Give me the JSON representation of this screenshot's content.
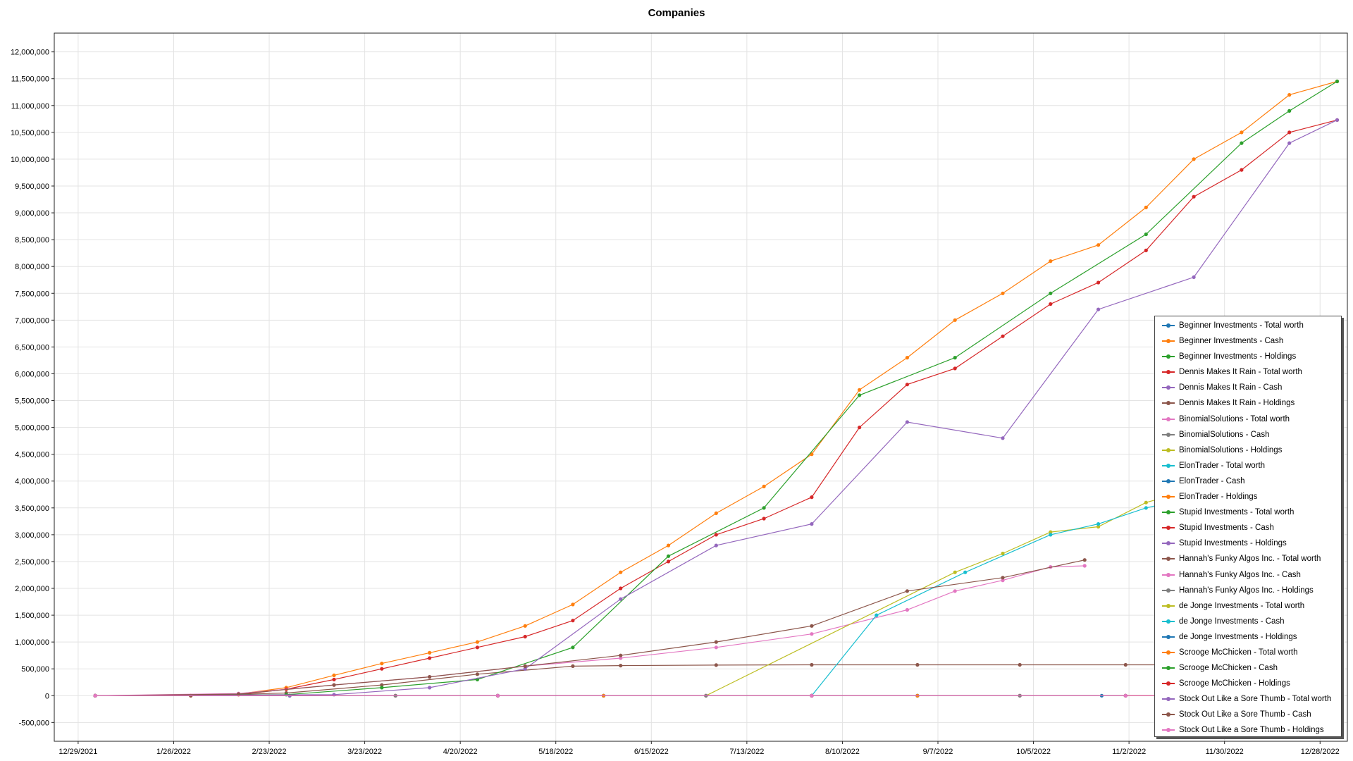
{
  "chart_data": {
    "type": "line",
    "title": "Companies",
    "xlabel": "",
    "ylabel": "",
    "x_ticks": [
      "12/29/2021",
      "1/26/2022",
      "2/23/2022",
      "3/23/2022",
      "4/20/2022",
      "5/18/2022",
      "6/15/2022",
      "7/13/2022",
      "8/10/2022",
      "9/7/2022",
      "10/5/2022",
      "11/2/2022",
      "11/30/2022",
      "12/28/2022"
    ],
    "x_range": [
      "12/22/2021",
      "1/5/2023"
    ],
    "y_ticks": [
      "-500,000",
      "0",
      "500,000",
      "1,000,000",
      "1,500,000",
      "2,000,000",
      "2,500,000",
      "3,000,000",
      "3,500,000",
      "4,000,000",
      "4,500,000",
      "5,000,000",
      "5,500,000",
      "6,000,000",
      "6,500,000",
      "7,000,000",
      "7,500,000",
      "8,000,000",
      "8,500,000",
      "9,000,000",
      "9,500,000",
      "10,000,000",
      "10,500,000",
      "11,000,000",
      "11,500,000",
      "12,000,000"
    ],
    "ylim": [
      -850000,
      12350000
    ],
    "grid": true,
    "legend_position": "bottom-right",
    "series": [
      {
        "name": "Beginner Investments - Total worth",
        "color": "#1f77b4",
        "points": [
          [
            "1/3/2022",
            0
          ],
          [
            "3/1/2022",
            0
          ],
          [
            "5/1/2022",
            0
          ],
          [
            "7/1/2022",
            0
          ],
          [
            "9/1/2022",
            0
          ],
          [
            "10/25/2022",
            0
          ]
        ]
      },
      {
        "name": "Beginner Investments - Cash",
        "color": "#ff7f0e",
        "points": [
          [
            "1/3/2022",
            0
          ],
          [
            "1/31/2022",
            0
          ],
          [
            "2/14/2022",
            30000
          ],
          [
            "2/28/2022",
            150000
          ],
          [
            "3/14/2022",
            380000
          ],
          [
            "3/28/2022",
            600000
          ],
          [
            "4/11/2022",
            800000
          ],
          [
            "4/25/2022",
            1000000
          ],
          [
            "5/9/2022",
            1300000
          ],
          [
            "5/23/2022",
            1700000
          ],
          [
            "6/6/2022",
            2300000
          ],
          [
            "6/20/2022",
            2800000
          ],
          [
            "7/4/2022",
            3400000
          ],
          [
            "7/18/2022",
            3900000
          ],
          [
            "8/1/2022",
            4500000
          ],
          [
            "8/15/2022",
            5700000
          ],
          [
            "8/29/2022",
            6300000
          ],
          [
            "9/12/2022",
            7000000
          ],
          [
            "9/26/2022",
            7500000
          ],
          [
            "10/10/2022",
            8100000
          ],
          [
            "10/24/2022",
            8400000
          ],
          [
            "11/7/2022",
            9100000
          ],
          [
            "11/21/2022",
            10000000
          ],
          [
            "12/5/2022",
            10500000
          ],
          [
            "12/19/2022",
            11200000
          ],
          [
            "1/2/2023",
            11450000
          ]
        ]
      },
      {
        "name": "Beginner Investments - Holdings",
        "color": "#2ca02c",
        "points": [
          [
            "1/3/2022",
            0
          ],
          [
            "3/1/2022",
            0
          ],
          [
            "6/1/2022",
            0
          ],
          [
            "9/1/2022",
            0
          ],
          [
            "12/1/2022",
            0
          ]
        ]
      },
      {
        "name": "Dennis Makes It Rain - Total worth",
        "color": "#d62728",
        "points": [
          [
            "1/3/2022",
            0
          ],
          [
            "1/31/2022",
            0
          ],
          [
            "2/14/2022",
            20000
          ],
          [
            "2/28/2022",
            120000
          ],
          [
            "3/14/2022",
            300000
          ],
          [
            "3/28/2022",
            500000
          ],
          [
            "4/11/2022",
            700000
          ],
          [
            "4/25/2022",
            900000
          ],
          [
            "5/9/2022",
            1100000
          ],
          [
            "5/23/2022",
            1400000
          ],
          [
            "6/6/2022",
            2000000
          ],
          [
            "6/20/2022",
            2500000
          ],
          [
            "7/4/2022",
            3000000
          ],
          [
            "7/18/2022",
            3300000
          ],
          [
            "8/1/2022",
            3700000
          ],
          [
            "8/15/2022",
            5000000
          ],
          [
            "8/29/2022",
            5800000
          ],
          [
            "9/12/2022",
            6100000
          ],
          [
            "9/26/2022",
            6700000
          ],
          [
            "10/10/2022",
            7300000
          ],
          [
            "10/24/2022",
            7700000
          ],
          [
            "11/7/2022",
            8300000
          ],
          [
            "11/21/2022",
            9300000
          ],
          [
            "12/5/2022",
            9800000
          ],
          [
            "12/19/2022",
            10500000
          ],
          [
            "1/2/2023",
            10730000
          ]
        ]
      },
      {
        "name": "Dennis Makes It Rain - Cash",
        "color": "#9467bd",
        "points": [
          [
            "1/3/2022",
            0
          ],
          [
            "3/1/2022",
            0
          ],
          [
            "6/1/2022",
            0
          ],
          [
            "9/1/2022",
            0
          ],
          [
            "12/1/2022",
            0
          ]
        ]
      },
      {
        "name": "Dennis Makes It Rain - Holdings",
        "color": "#8c564b",
        "points": [
          [
            "1/3/2022",
            0
          ],
          [
            "1/31/2022",
            0
          ],
          [
            "2/28/2022",
            50000
          ],
          [
            "3/28/2022",
            200000
          ],
          [
            "4/25/2022",
            400000
          ],
          [
            "5/23/2022",
            550000
          ],
          [
            "6/6/2022",
            560000
          ],
          [
            "7/4/2022",
            570000
          ],
          [
            "8/1/2022",
            575000
          ],
          [
            "9/1/2022",
            575000
          ],
          [
            "10/1/2022",
            575000
          ],
          [
            "11/1/2022",
            575000
          ],
          [
            "12/1/2022",
            575000
          ]
        ]
      },
      {
        "name": "BinomialSolutions - Total worth",
        "color": "#e377c2",
        "points": [
          [
            "1/3/2022",
            0
          ],
          [
            "2/14/2022",
            40000
          ],
          [
            "3/14/2022",
            200000
          ],
          [
            "4/11/2022",
            350000
          ],
          [
            "5/9/2022",
            550000
          ],
          [
            "6/6/2022",
            700000
          ],
          [
            "7/4/2022",
            900000
          ],
          [
            "8/1/2022",
            1150000
          ],
          [
            "8/29/2022",
            1600000
          ],
          [
            "9/12/2022",
            1950000
          ],
          [
            "9/26/2022",
            2150000
          ],
          [
            "10/10/2022",
            2400000
          ],
          [
            "10/20/2022",
            2420000
          ]
        ]
      },
      {
        "name": "BinomialSolutions - Cash",
        "color": "#7f7f7f",
        "points": [
          [
            "1/3/2022",
            0
          ],
          [
            "4/1/2022",
            0
          ],
          [
            "7/1/2022",
            0
          ],
          [
            "10/1/2022",
            0
          ]
        ]
      },
      {
        "name": "BinomialSolutions - Holdings",
        "color": "#bcbd22",
        "points": [
          [
            "1/3/2022",
            0
          ],
          [
            "4/1/2022",
            0
          ],
          [
            "7/1/2022",
            0
          ],
          [
            "9/12/2022",
            2300000
          ],
          [
            "9/26/2022",
            2650000
          ],
          [
            "10/10/2022",
            3050000
          ],
          [
            "10/24/2022",
            3150000
          ],
          [
            "11/7/2022",
            3600000
          ],
          [
            "11/21/2022",
            3850000
          ],
          [
            "11/28/2022",
            4300000
          ],
          [
            "12/1/2022",
            4400000
          ]
        ]
      },
      {
        "name": "ElonTrader - Total worth",
        "color": "#17becf",
        "points": [
          [
            "1/3/2022",
            0
          ],
          [
            "5/1/2022",
            0
          ],
          [
            "8/1/2022",
            0
          ],
          [
            "8/20/2022",
            1500000
          ],
          [
            "9/15/2022",
            2300000
          ],
          [
            "10/10/2022",
            3000000
          ],
          [
            "10/24/2022",
            3200000
          ],
          [
            "11/7/2022",
            3500000
          ],
          [
            "11/21/2022",
            3700000
          ],
          [
            "12/1/2022",
            4400000
          ]
        ]
      },
      {
        "name": "ElonTrader - Cash",
        "color": "#1f77b4",
        "points": [
          [
            "1/3/2022",
            0
          ],
          [
            "6/1/2022",
            0
          ],
          [
            "9/1/2022",
            0
          ],
          [
            "12/1/2022",
            0
          ]
        ]
      },
      {
        "name": "ElonTrader - Holdings",
        "color": "#ff7f0e",
        "points": [
          [
            "1/3/2022",
            0
          ],
          [
            "6/1/2022",
            0
          ],
          [
            "9/1/2022",
            0
          ],
          [
            "12/1/2022",
            0
          ]
        ]
      },
      {
        "name": "Stupid Investments - Total worth",
        "color": "#2ca02c",
        "points": [
          [
            "1/3/2022",
            0
          ],
          [
            "2/28/2022",
            20000
          ],
          [
            "3/28/2022",
            150000
          ],
          [
            "4/25/2022",
            300000
          ],
          [
            "5/23/2022",
            900000
          ],
          [
            "6/20/2022",
            2600000
          ],
          [
            "7/18/2022",
            3500000
          ],
          [
            "8/15/2022",
            5600000
          ],
          [
            "9/12/2022",
            6300000
          ],
          [
            "10/10/2022",
            7500000
          ],
          [
            "11/7/2022",
            8600000
          ],
          [
            "12/5/2022",
            10300000
          ],
          [
            "12/19/2022",
            10900000
          ],
          [
            "1/2/2023",
            11450000
          ]
        ]
      },
      {
        "name": "Stupid Investments - Cash",
        "color": "#d62728",
        "points": [
          [
            "1/3/2022",
            0
          ],
          [
            "4/1/2022",
            0
          ],
          [
            "7/1/2022",
            0
          ],
          [
            "10/1/2022",
            0
          ],
          [
            "1/2/2023",
            0
          ]
        ]
      },
      {
        "name": "Stupid Investments - Holdings",
        "color": "#9467bd",
        "points": [
          [
            "1/3/2022",
            0
          ],
          [
            "3/14/2022",
            20000
          ],
          [
            "4/11/2022",
            150000
          ],
          [
            "5/9/2022",
            500000
          ],
          [
            "6/6/2022",
            1800000
          ],
          [
            "7/4/2022",
            2800000
          ],
          [
            "8/1/2022",
            3200000
          ],
          [
            "8/29/2022",
            5100000
          ],
          [
            "9/26/2022",
            4800000
          ],
          [
            "10/24/2022",
            7200000
          ],
          [
            "11/21/2022",
            7800000
          ],
          [
            "12/19/2022",
            10300000
          ],
          [
            "1/2/2023",
            10730000
          ]
        ]
      },
      {
        "name": "Hannah's Funky Algos Inc. - Total worth",
        "color": "#8c564b",
        "points": [
          [
            "1/3/2022",
            0
          ],
          [
            "2/14/2022",
            30000
          ],
          [
            "3/14/2022",
            200000
          ],
          [
            "4/11/2022",
            350000
          ],
          [
            "5/9/2022",
            550000
          ],
          [
            "6/6/2022",
            750000
          ],
          [
            "7/4/2022",
            1000000
          ],
          [
            "8/1/2022",
            1300000
          ],
          [
            "8/29/2022",
            1950000
          ],
          [
            "9/26/2022",
            2200000
          ],
          [
            "10/20/2022",
            2530000
          ]
        ]
      },
      {
        "name": "Hannah's Funky Algos Inc. - Cash",
        "color": "#e377c2",
        "points": [
          [
            "1/3/2022",
            0
          ],
          [
            "4/1/2022",
            0
          ],
          [
            "7/1/2022",
            0
          ],
          [
            "10/1/2022",
            0
          ],
          [
            "1/2/2023",
            0
          ]
        ]
      },
      {
        "name": "Hannah's Funky Algos Inc. - Holdings",
        "color": "#7f7f7f",
        "points": [
          [
            "1/3/2022",
            0
          ],
          [
            "4/1/2022",
            0
          ],
          [
            "7/1/2022",
            0
          ],
          [
            "10/1/2022",
            0
          ]
        ]
      },
      {
        "name": "de Jonge Investments - Total worth",
        "color": "#bcbd22",
        "points": [
          [
            "1/3/2022",
            0
          ],
          [
            "5/1/2022",
            0
          ],
          [
            "8/1/2022",
            0
          ],
          [
            "11/1/2022",
            0
          ]
        ]
      },
      {
        "name": "de Jonge Investments - Cash",
        "color": "#17becf",
        "points": [
          [
            "1/3/2022",
            0
          ],
          [
            "5/1/2022",
            0
          ],
          [
            "8/1/2022",
            0
          ],
          [
            "11/1/2022",
            0
          ]
        ]
      },
      {
        "name": "de Jonge Investments - Holdings",
        "color": "#1f77b4",
        "points": [
          [
            "1/3/2022",
            0
          ],
          [
            "5/1/2022",
            0
          ],
          [
            "8/1/2022",
            0
          ],
          [
            "11/1/2022",
            0
          ]
        ]
      },
      {
        "name": "Scrooge McChicken - Total worth",
        "color": "#ff7f0e",
        "points": [
          [
            "1/3/2022",
            0
          ],
          [
            "5/1/2022",
            0
          ],
          [
            "8/1/2022",
            0
          ],
          [
            "11/1/2022",
            0
          ]
        ]
      },
      {
        "name": "Scrooge McChicken - Cash",
        "color": "#2ca02c",
        "points": [
          [
            "1/3/2022",
            0
          ],
          [
            "5/1/2022",
            0
          ],
          [
            "8/1/2022",
            0
          ],
          [
            "11/1/2022",
            0
          ]
        ]
      },
      {
        "name": "Scrooge McChicken - Holdings",
        "color": "#d62728",
        "points": [
          [
            "1/3/2022",
            0
          ],
          [
            "5/1/2022",
            0
          ],
          [
            "8/1/2022",
            0
          ],
          [
            "11/1/2022",
            0
          ]
        ]
      },
      {
        "name": "Stock Out Like a Sore Thumb - Total worth",
        "color": "#9467bd",
        "points": [
          [
            "1/3/2022",
            0
          ],
          [
            "5/1/2022",
            0
          ],
          [
            "8/1/2022",
            0
          ],
          [
            "11/1/2022",
            0
          ]
        ]
      },
      {
        "name": "Stock Out Like a Sore Thumb - Cash",
        "color": "#8c564b",
        "points": [
          [
            "1/3/2022",
            0
          ],
          [
            "5/1/2022",
            0
          ],
          [
            "8/1/2022",
            0
          ],
          [
            "11/1/2022",
            0
          ]
        ]
      },
      {
        "name": "Stock Out Like a Sore Thumb - Holdings",
        "color": "#e377c2",
        "points": [
          [
            "1/3/2022",
            0
          ],
          [
            "5/1/2022",
            0
          ],
          [
            "8/1/2022",
            0
          ],
          [
            "11/1/2022",
            0
          ]
        ]
      }
    ]
  }
}
